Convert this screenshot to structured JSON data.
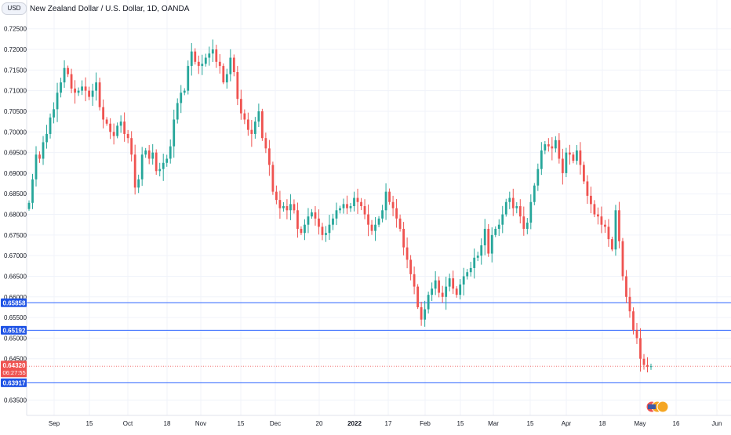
{
  "header": {
    "currency_badge": "USD",
    "title": "New Zealand Dollar / U.S. Dollar, 1D, OANDA"
  },
  "colors": {
    "up": "#26a69a",
    "down": "#ef5350",
    "level_line": "#2962ff",
    "price_label_bg": "#ef5350",
    "level_label_bg": "#1e53e5",
    "grid": "#f0f3fa",
    "axis_text": "#131722"
  },
  "price_label": {
    "value": "0.64320",
    "countdown": "06:27:55"
  },
  "chart_data": {
    "type": "candlestick",
    "instrument": "New Zealand Dollar / U.S. Dollar",
    "timeframe": "1D",
    "source": "OANDA",
    "y_ticks": [
      "0.72500",
      "0.72000",
      "0.71500",
      "0.71000",
      "0.70500",
      "0.70000",
      "0.69500",
      "0.69000",
      "0.68500",
      "0.68000",
      "0.67500",
      "0.67000",
      "0.66500",
      "0.66000",
      "0.65500",
      "0.65000",
      "0.64500",
      "0.63500"
    ],
    "ylim": [
      0.6333,
      0.7278
    ],
    "x_ticks": [
      "Sep",
      "15",
      "Oct",
      "18",
      "Nov",
      "15",
      "Dec",
      "20",
      "2022",
      "17",
      "Feb",
      "15",
      "Mar",
      "15",
      "Apr",
      "18",
      "May",
      "16",
      "Jun"
    ],
    "horizontal_levels": [
      {
        "value": 0.65858,
        "label": "0.65858"
      },
      {
        "value": 0.65192,
        "label": "0.65192"
      },
      {
        "value": 0.63917,
        "label": "0.63917"
      }
    ],
    "current_price": 0.6432,
    "closes": [
      0.6828,
      0.6885,
      0.6945,
      0.6935,
      0.6975,
      0.6995,
      0.7035,
      0.7055,
      0.7095,
      0.712,
      0.7155,
      0.714,
      0.7105,
      0.7095,
      0.71,
      0.711,
      0.71,
      0.7085,
      0.71,
      0.712,
      0.706,
      0.703,
      0.702,
      0.7,
      0.699,
      0.7015,
      0.7025,
      0.6995,
      0.6985,
      0.6945,
      0.6865,
      0.6885,
      0.6945,
      0.6955,
      0.6935,
      0.695,
      0.6905,
      0.691,
      0.6925,
      0.6935,
      0.6965,
      0.703,
      0.707,
      0.7095,
      0.71,
      0.716,
      0.7195,
      0.717,
      0.716,
      0.7165,
      0.718,
      0.719,
      0.72,
      0.717,
      0.716,
      0.712,
      0.714,
      0.718,
      0.7145,
      0.708,
      0.7045,
      0.703,
      0.7005,
      0.6995,
      0.7025,
      0.705,
      0.6985,
      0.696,
      0.692,
      0.6855,
      0.6835,
      0.6815,
      0.682,
      0.681,
      0.6825,
      0.681,
      0.6765,
      0.6755,
      0.6775,
      0.6795,
      0.6805,
      0.679,
      0.677,
      0.675,
      0.6755,
      0.6775,
      0.679,
      0.681,
      0.6815,
      0.6825,
      0.6815,
      0.682,
      0.684,
      0.683,
      0.682,
      0.68,
      0.6775,
      0.676,
      0.6775,
      0.679,
      0.681,
      0.6855,
      0.683,
      0.6815,
      0.679,
      0.6765,
      0.672,
      0.669,
      0.6655,
      0.6625,
      0.6575,
      0.6545,
      0.657,
      0.6605,
      0.662,
      0.664,
      0.661,
      0.66,
      0.6625,
      0.6645,
      0.662,
      0.6605,
      0.663,
      0.665,
      0.666,
      0.667,
      0.6695,
      0.67,
      0.6725,
      0.6765,
      0.6705,
      0.675,
      0.6765,
      0.6775,
      0.68,
      0.683,
      0.684,
      0.6815,
      0.682,
      0.6795,
      0.6765,
      0.678,
      0.683,
      0.687,
      0.691,
      0.6955,
      0.697,
      0.6965,
      0.696,
      0.698,
      0.6935,
      0.69,
      0.695,
      0.6945,
      0.693,
      0.6955,
      0.692,
      0.688,
      0.6845,
      0.6825,
      0.68,
      0.6795,
      0.6775,
      0.677,
      0.674,
      0.6715,
      0.681,
      0.6735,
      0.665,
      0.66,
      0.6565,
      0.652,
      0.65,
      0.645,
      0.6435,
      0.643,
      0.6432
    ]
  }
}
